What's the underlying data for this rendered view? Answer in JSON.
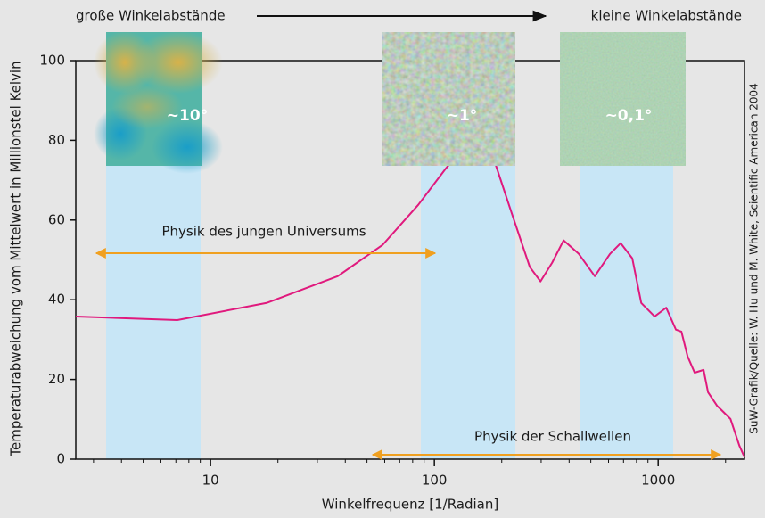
{
  "chart_data": {
    "type": "line",
    "x_label": "Winkelfrequenz  [1/Radian]",
    "y_label": "Temperaturabweichung vom Mittelwert in Millionstel Kelvin",
    "xscale": "log",
    "xlim": [
      2.5,
      2430
    ],
    "xticks": [
      10,
      100,
      1000
    ],
    "ylim": [
      0,
      100
    ],
    "yticks": [
      0,
      20,
      40,
      60,
      80,
      100
    ],
    "x": [
      2.5,
      7.1,
      17.8,
      37,
      58.8,
      84.7,
      112,
      134,
      157,
      185,
      222,
      267,
      298,
      336,
      378,
      442,
      521,
      609,
      680,
      766,
      840,
      964,
      1086,
      1200,
      1270,
      1353,
      1455,
      1595,
      1670,
      1832,
      1919,
      2103,
      2305,
      2430
    ],
    "series": [
      {
        "color": "#e0197d",
        "values": [
          35.8,
          34.9,
          39.2,
          45.9,
          53.8,
          63.8,
          72.8,
          77.9,
          79.1,
          75,
          61.6,
          48.2,
          44.6,
          49.3,
          54.9,
          51.5,
          45.9,
          51.5,
          54.2,
          50.4,
          39.2,
          35.8,
          38,
          32.5,
          32,
          25.8,
          21.7,
          22.4,
          16.8,
          13.4,
          12.3,
          10.1,
          3.4,
          0.5
        ]
      }
    ],
    "annotations": {
      "top_left": "große Winkelabstände",
      "top_right": "kleine Winkelabstände",
      "young": "Physik des jungen Universums",
      "sound": "Physik der Schallwellen",
      "scales": [
        "~10°",
        "~1°",
        "~0,1°"
      ]
    },
    "source": "SuW-Grafik/Quelle: W. Hu und M. White, Scientific American 2004"
  }
}
